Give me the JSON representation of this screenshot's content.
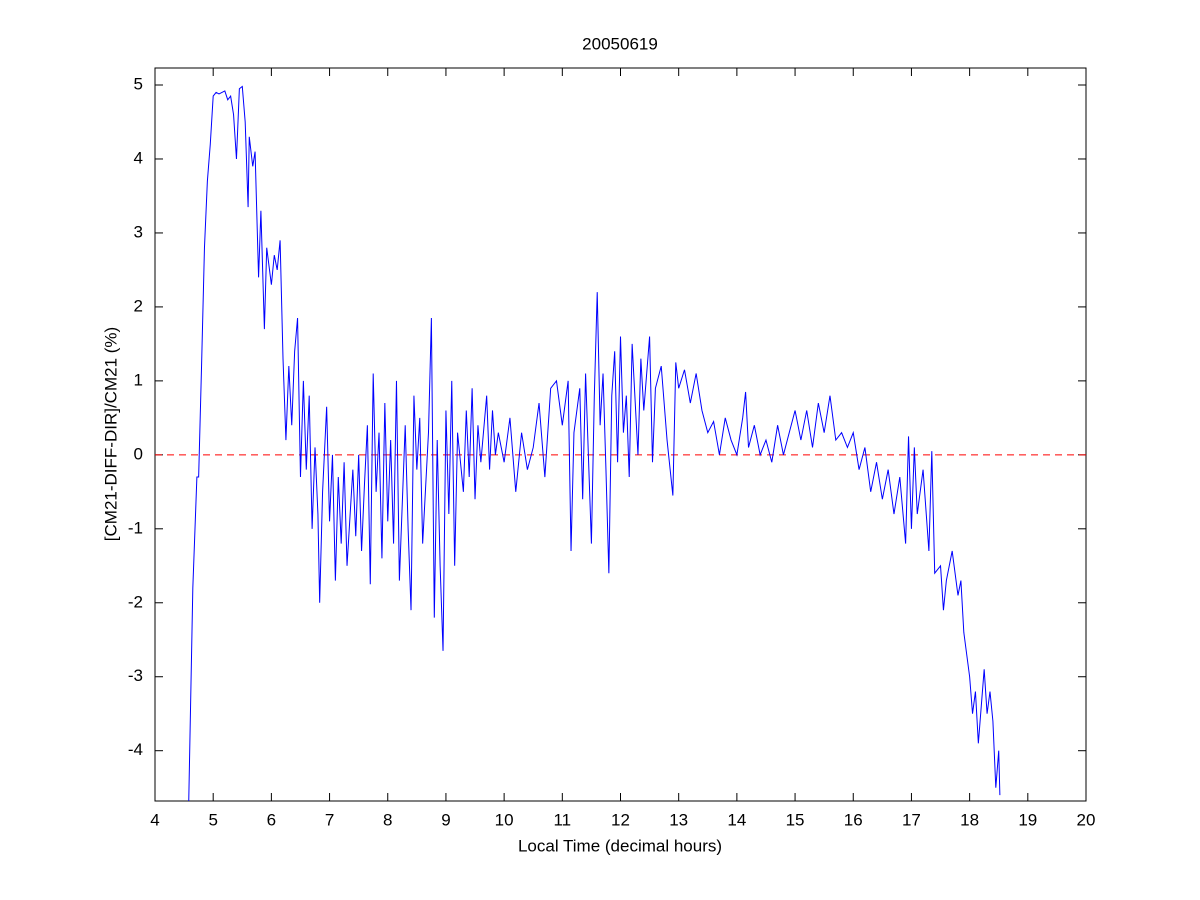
{
  "chart_data": {
    "type": "line",
    "title": "20050619",
    "x_label": "Local Time (decimal hours)",
    "y_label": "[CM21-DIFF-DIR]/CM21 (%)",
    "xlim": [
      4,
      20
    ],
    "xticks": [
      4,
      5,
      6,
      7,
      8,
      9,
      10,
      11,
      12,
      13,
      14,
      15,
      16,
      17,
      18,
      19,
      20
    ],
    "ylim": [
      -4.68,
      5.23
    ],
    "yticks": [
      -4,
      -3,
      -2,
      -1,
      0,
      1,
      2,
      3,
      4,
      5
    ],
    "hline": {
      "value": 0,
      "color": "#ff0000",
      "style": "dashed"
    },
    "series": [
      {
        "color": "#0000ff",
        "x": [
          4.58,
          4.65,
          4.72,
          4.75,
          4.8,
          4.85,
          4.9,
          4.95,
          5.0,
          5.05,
          5.1,
          5.2,
          5.25,
          5.3,
          5.35,
          5.4,
          5.45,
          5.5,
          5.55,
          5.6,
          5.62,
          5.68,
          5.72,
          5.78,
          5.82,
          5.88,
          5.92,
          6.0,
          6.05,
          6.1,
          6.15,
          6.2,
          6.25,
          6.3,
          6.35,
          6.4,
          6.45,
          6.5,
          6.55,
          6.6,
          6.65,
          6.7,
          6.75,
          6.8,
          6.83,
          6.88,
          6.95,
          7.0,
          7.05,
          7.1,
          7.15,
          7.2,
          7.25,
          7.3,
          7.4,
          7.45,
          7.5,
          7.55,
          7.6,
          7.65,
          7.7,
          7.75,
          7.8,
          7.85,
          7.9,
          7.95,
          8.0,
          8.05,
          8.1,
          8.15,
          8.2,
          8.3,
          8.35,
          8.4,
          8.45,
          8.5,
          8.55,
          8.6,
          8.7,
          8.75,
          8.8,
          8.85,
          8.9,
          8.95,
          9.0,
          9.05,
          9.1,
          9.15,
          9.2,
          9.3,
          9.35,
          9.4,
          9.45,
          9.5,
          9.55,
          9.6,
          9.7,
          9.75,
          9.8,
          9.85,
          9.9,
          10.0,
          10.1,
          10.2,
          10.3,
          10.4,
          10.5,
          10.6,
          10.7,
          10.8,
          10.9,
          11.0,
          11.1,
          11.15,
          11.2,
          11.3,
          11.35,
          11.4,
          11.5,
          11.55,
          11.6,
          11.65,
          11.7,
          11.75,
          11.8,
          11.85,
          11.9,
          11.95,
          12.0,
          12.05,
          12.1,
          12.15,
          12.2,
          12.3,
          12.35,
          12.4,
          12.5,
          12.55,
          12.6,
          12.7,
          12.8,
          12.9,
          12.95,
          13.0,
          13.1,
          13.2,
          13.3,
          13.4,
          13.5,
          13.6,
          13.7,
          13.8,
          13.9,
          14.0,
          14.1,
          14.15,
          14.2,
          14.3,
          14.4,
          14.5,
          14.6,
          14.7,
          14.8,
          14.9,
          15.0,
          15.1,
          15.2,
          15.3,
          15.4,
          15.5,
          15.6,
          15.7,
          15.8,
          15.9,
          16.0,
          16.1,
          16.2,
          16.3,
          16.4,
          16.5,
          16.6,
          16.7,
          16.8,
          16.9,
          16.95,
          17.0,
          17.05,
          17.1,
          17.2,
          17.3,
          17.35,
          17.4,
          17.5,
          17.55,
          17.6,
          17.7,
          17.8,
          17.85,
          17.9,
          18.0,
          18.05,
          18.1,
          18.15,
          18.2,
          18.25,
          18.3,
          18.35,
          18.4,
          18.45,
          18.5,
          18.52
        ],
        "values": [
          -4.68,
          -1.8,
          -0.3,
          -0.3,
          1.2,
          2.8,
          3.7,
          4.2,
          4.85,
          4.9,
          4.88,
          4.92,
          4.8,
          4.85,
          4.6,
          4.0,
          4.95,
          4.98,
          4.5,
          3.35,
          4.3,
          3.9,
          4.1,
          2.4,
          3.3,
          1.7,
          2.8,
          2.3,
          2.7,
          2.5,
          2.9,
          1.3,
          0.2,
          1.2,
          0.4,
          1.4,
          1.85,
          -0.3,
          1.0,
          -0.2,
          0.8,
          -1.0,
          0.1,
          -0.8,
          -2.0,
          -0.5,
          0.65,
          -0.9,
          0.0,
          -1.7,
          -0.3,
          -1.2,
          -0.1,
          -1.5,
          -0.2,
          -1.1,
          0.0,
          -1.3,
          -0.4,
          0.4,
          -1.75,
          1.1,
          -0.5,
          0.3,
          -1.4,
          0.7,
          -0.9,
          0.2,
          -1.2,
          1.0,
          -1.7,
          0.4,
          -1.0,
          -2.1,
          0.8,
          -0.2,
          0.5,
          -1.2,
          0.3,
          1.85,
          -2.2,
          0.2,
          -1.5,
          -2.65,
          0.6,
          -0.8,
          1.0,
          -1.5,
          0.3,
          -0.5,
          0.6,
          -0.3,
          0.9,
          -0.6,
          0.4,
          -0.1,
          0.8,
          -0.2,
          0.6,
          0.0,
          0.3,
          -0.1,
          0.5,
          -0.5,
          0.3,
          -0.2,
          0.1,
          0.7,
          -0.3,
          0.9,
          1.0,
          0.4,
          1.0,
          -1.3,
          0.3,
          0.9,
          -0.6,
          1.1,
          -1.2,
          0.8,
          2.2,
          0.4,
          1.1,
          -0.2,
          -1.6,
          0.8,
          1.4,
          -0.1,
          1.6,
          0.3,
          0.8,
          -0.3,
          1.5,
          0.0,
          1.3,
          0.6,
          1.6,
          -0.1,
          0.9,
          1.2,
          0.2,
          -0.55,
          1.25,
          0.9,
          1.15,
          0.7,
          1.1,
          0.6,
          0.3,
          0.45,
          0.0,
          0.5,
          0.2,
          0.0,
          0.5,
          0.85,
          0.1,
          0.4,
          0.0,
          0.2,
          -0.1,
          0.4,
          0.0,
          0.3,
          0.6,
          0.2,
          0.6,
          0.1,
          0.7,
          0.3,
          0.8,
          0.2,
          0.3,
          0.1,
          0.3,
          -0.2,
          0.1,
          -0.5,
          -0.1,
          -0.6,
          -0.2,
          -0.8,
          -0.3,
          -1.2,
          0.25,
          -1.0,
          0.1,
          -0.8,
          -0.2,
          -1.3,
          0.05,
          -1.6,
          -1.5,
          -2.1,
          -1.7,
          -1.3,
          -1.9,
          -1.7,
          -2.4,
          -3.0,
          -3.5,
          -3.2,
          -3.9,
          -3.4,
          -2.9,
          -3.5,
          -3.2,
          -3.6,
          -4.5,
          -4.0,
          -4.6
        ]
      }
    ]
  }
}
